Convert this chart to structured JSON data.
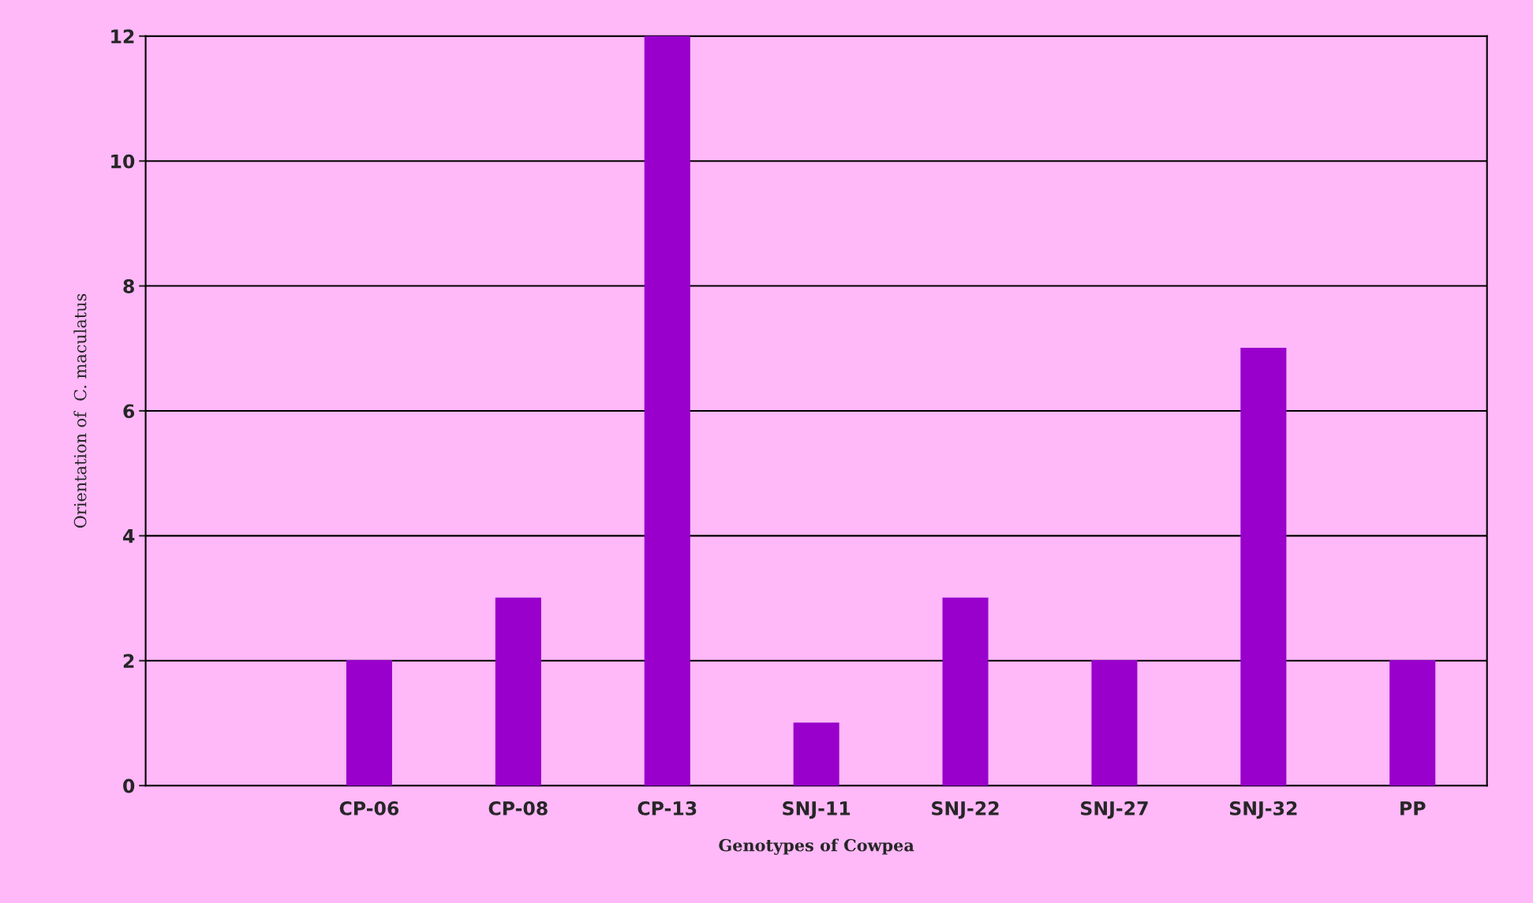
{
  "chart_data": {
    "type": "bar",
    "categories": [
      null,
      "CP-06",
      "CP-08",
      "CP-13",
      "SNJ-11",
      "SNJ-22",
      "SNJ-27",
      "SNJ-32",
      "PP"
    ],
    "values": [
      null,
      2,
      3,
      12,
      1,
      3,
      2,
      7,
      2
    ],
    "color": "#9900cc",
    "xlabel": "Genotypes of Cowpea",
    "ylabel": "Orientation of  C. maculatus",
    "ylim": [
      0,
      12
    ],
    "yticks": [
      0,
      2,
      4,
      6,
      8,
      10,
      12
    ],
    "grid": "y"
  }
}
